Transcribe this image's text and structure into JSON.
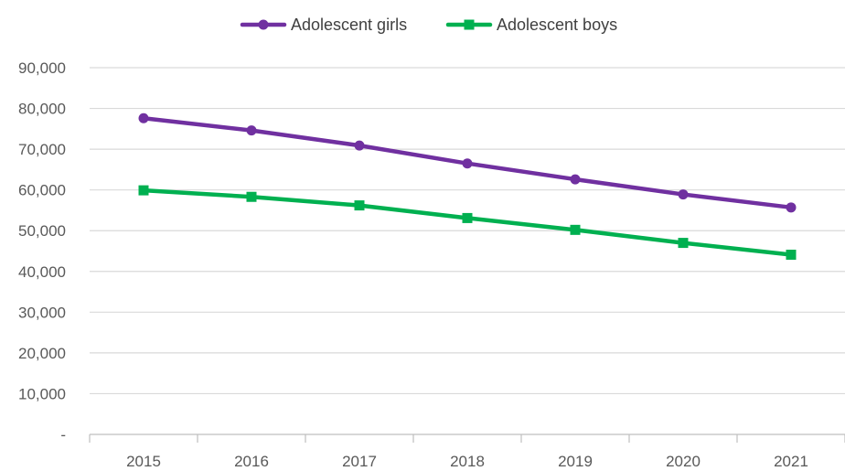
{
  "chart_data": {
    "type": "line",
    "title": "",
    "xlabel": "",
    "ylabel": "",
    "categories": [
      "2015",
      "2016",
      "2017",
      "2018",
      "2019",
      "2020",
      "2021"
    ],
    "ylim": [
      0,
      90000
    ],
    "yticks": [
      0,
      10000,
      20000,
      30000,
      40000,
      50000,
      60000,
      70000,
      80000,
      90000
    ],
    "ytick_labels": [
      "-",
      "10,000",
      "20,000",
      "30,000",
      "40,000",
      "50,000",
      "60,000",
      "70,000",
      "80,000",
      "90,000"
    ],
    "grid": "horizontal",
    "legend": "top-center",
    "series": [
      {
        "name": "Adolescent girls",
        "color": "#7030a0",
        "marker": "circle",
        "values": [
          77600,
          74600,
          70900,
          66500,
          62600,
          58900,
          55700
        ]
      },
      {
        "name": "Adolescent boys",
        "color": "#00b050",
        "marker": "square",
        "values": [
          59900,
          58300,
          56200,
          53100,
          50200,
          47000,
          44100
        ]
      }
    ]
  }
}
